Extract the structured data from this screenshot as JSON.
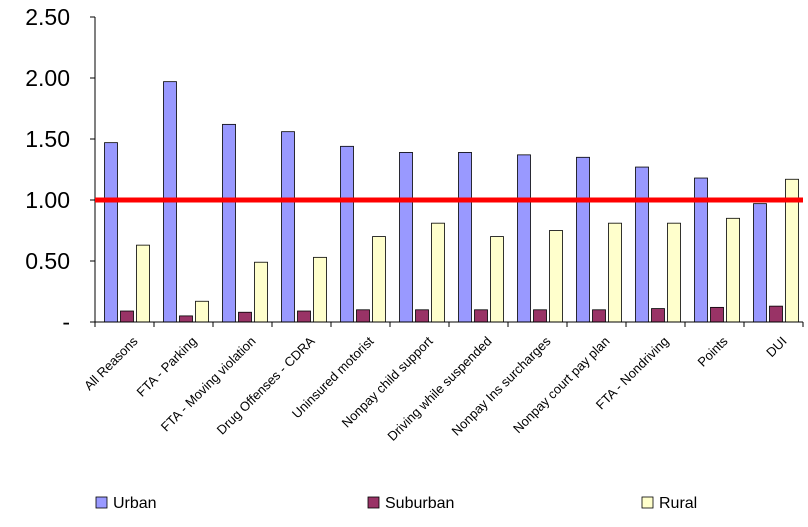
{
  "chart_data": {
    "type": "bar",
    "categories": [
      "All Reasons",
      "FTA - Parking",
      "FTA - Moving violation",
      "Drug Offenses - CDRA",
      "Uninsured motorist",
      "Nonpay child support",
      "Driving while suspended",
      "Nonpay Ins surcharges",
      "Nonpay court pay plan",
      "FTA - Nondriving",
      "Points",
      "DUI"
    ],
    "series": [
      {
        "name": "Urban",
        "color": "#9999ff",
        "values": [
          1.47,
          1.97,
          1.62,
          1.56,
          1.44,
          1.39,
          1.39,
          1.37,
          1.35,
          1.27,
          1.18,
          0.97
        ]
      },
      {
        "name": "Suburban",
        "color": "#993366",
        "values": [
          0.09,
          0.05,
          0.08,
          0.09,
          0.1,
          0.1,
          0.1,
          0.1,
          0.1,
          0.11,
          0.12,
          0.13
        ]
      },
      {
        "name": "Rural",
        "color": "#ffffcc",
        "values": [
          0.63,
          0.17,
          0.49,
          0.53,
          0.7,
          0.81,
          0.7,
          0.75,
          0.81,
          0.81,
          0.85,
          1.17
        ]
      }
    ],
    "yticks": [
      "-",
      "0.50",
      "1.00",
      "1.50",
      "2.00",
      "2.50"
    ],
    "ytick_values": [
      0,
      0.5,
      1.0,
      1.5,
      2.0,
      2.5
    ],
    "ylim": [
      0,
      2.5
    ],
    "reference_line": {
      "value": 1.0,
      "color": "#ff0000"
    },
    "legend_position": "bottom",
    "grid": false
  }
}
